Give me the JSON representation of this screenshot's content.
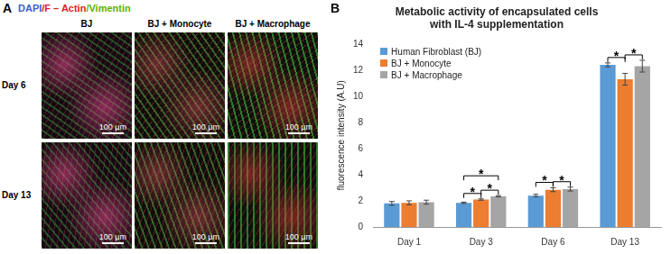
{
  "panel_a": {
    "letter": "A",
    "stain_legend": [
      {
        "text": "DAPI",
        "color": "#3a5fcd"
      },
      {
        "text": "/F – Actin",
        "color": "#e02020"
      },
      {
        "text": "/Vimentin",
        "color": "#5fb000"
      }
    ],
    "columns": [
      "BJ",
      "BJ + Monocyte",
      "BJ + Macrophage"
    ],
    "rows": [
      "Day 6",
      "Day 13"
    ],
    "scale_bar": "100 µm"
  },
  "panel_b": {
    "letter": "B"
  },
  "chart_data": {
    "type": "bar",
    "title": "Metabolic activity of encapsulated cells with IL-4 supplementation",
    "y_label": "fluorescence intensity (A.U)",
    "categories": [
      "Day 1",
      "Day 3",
      "Day 6",
      "Day 13"
    ],
    "series": [
      {
        "name": "Human Fibroblast (BJ)",
        "color": "#5b9bd5",
        "values": [
          1.8,
          1.85,
          2.4,
          12.4
        ],
        "errors": [
          0.15,
          0.05,
          0.1,
          0.15
        ]
      },
      {
        "name": "BJ + Monocyte",
        "color": "#ed7d31",
        "values": [
          1.85,
          2.1,
          2.85,
          11.3
        ],
        "errors": [
          0.15,
          0.05,
          0.15,
          0.45
        ]
      },
      {
        "name": "BJ + Macrophage",
        "color": "#a5a5a5",
        "values": [
          1.9,
          2.35,
          2.9,
          12.3
        ],
        "errors": [
          0.15,
          0.05,
          0.15,
          0.45
        ]
      }
    ],
    "significance": [
      {
        "category": "Day 3",
        "from": 0,
        "to": 1,
        "label": "*"
      },
      {
        "category": "Day 3",
        "from": 1,
        "to": 2,
        "label": "*"
      },
      {
        "category": "Day 3",
        "from": 0,
        "to": 2,
        "label": "*"
      },
      {
        "category": "Day 6",
        "from": 0,
        "to": 1,
        "label": "*"
      },
      {
        "category": "Day 6",
        "from": 1,
        "to": 2,
        "label": "*"
      },
      {
        "category": "Day 13",
        "from": 0,
        "to": 1,
        "label": "*"
      },
      {
        "category": "Day 13",
        "from": 1,
        "to": 2,
        "label": "*"
      }
    ],
    "ylim": [
      0,
      14
    ],
    "yticks": [
      0,
      2,
      4,
      6,
      8,
      10,
      12,
      14
    ],
    "grid": false,
    "legend": "upper left"
  }
}
